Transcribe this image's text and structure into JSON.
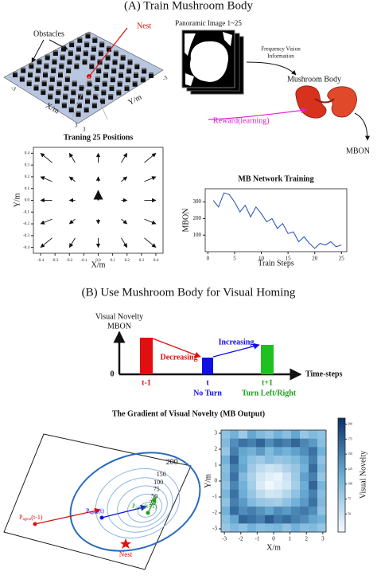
{
  "title_a": "(A) Train Mushroom Body",
  "arena": {
    "obstacles_label": "Obstacles",
    "nest_label": "Nest",
    "x_label": "X/m",
    "y_label": "Y/m",
    "x_ticks": [
      -3,
      3
    ],
    "y_ticks": [
      3,
      -3
    ]
  },
  "pipeline": {
    "panoramic_label": "Panoramic Image 1~25",
    "vision_label": [
      "Frequency Vision",
      "Information"
    ],
    "mb_label": "Mushroom Body",
    "reward_label": "Reward(learning)",
    "output_label": "MBON"
  },
  "chart_data": [
    {
      "type": "quiver",
      "title": "Traning 25 Positions",
      "x_label": "X/m",
      "y_label": "Y/m",
      "x": [
        -0.32,
        -0.16,
        0,
        0.16,
        0.32,
        -0.32,
        -0.16,
        0,
        0.16,
        0.32,
        -0.32,
        -0.16,
        0,
        0.16,
        0.32,
        -0.32,
        -0.16,
        0,
        0.16,
        0.32,
        -0.32,
        -0.16,
        0,
        0.16,
        0.32
      ],
      "y": [
        0.32,
        0.32,
        0.32,
        0.32,
        0.32,
        0.16,
        0.16,
        0.16,
        0.16,
        0.16,
        0,
        0,
        0,
        0,
        0,
        -0.16,
        -0.16,
        -0.16,
        -0.16,
        -0.16,
        -0.32,
        -0.32,
        -0.32,
        -0.32,
        -0.32
      ],
      "u": [
        -0.08,
        -0.04,
        0,
        0.04,
        0.08,
        -0.08,
        -0.04,
        0,
        0.04,
        0.08,
        -0.08,
        -0.04,
        0,
        0.04,
        0.08,
        -0.08,
        -0.04,
        0,
        0.04,
        0.08,
        -0.08,
        -0.04,
        0,
        0.04,
        0.08
      ],
      "v": [
        0.08,
        0.08,
        0.08,
        0.08,
        0.08,
        0.04,
        0.04,
        0.04,
        0.04,
        0.04,
        0,
        0,
        0.08,
        0,
        0,
        -0.04,
        -0.04,
        -0.04,
        -0.04,
        -0.04,
        -0.08,
        -0.08,
        -0.08,
        -0.08,
        -0.08
      ],
      "color": "#111111",
      "xlim": [
        -0.45,
        0.45
      ],
      "ylim": [
        -0.45,
        0.45
      ],
      "xticks": [
        -0.4,
        -0.3,
        -0.2,
        -0.1,
        {
          "value": 0,
          "label": "0.0"
        },
        0.1,
        0.2,
        0.3,
        0.4
      ],
      "yticks": [
        -0.4,
        -0.3,
        -0.2,
        -0.1,
        {
          "value": 0,
          "label": "0.0"
        },
        0.1,
        0.2,
        0.3,
        0.4
      ]
    },
    {
      "type": "line",
      "title": "MB Network Training",
      "x_label": "Train Steps",
      "y_label": "MBON",
      "x": [
        1,
        2,
        3,
        4,
        5,
        6,
        7,
        8,
        9,
        10,
        11,
        12,
        13,
        14,
        15,
        16,
        17,
        18,
        19,
        20,
        21,
        22,
        23,
        24,
        25
      ],
      "values": [
        310,
        270,
        355,
        345,
        300,
        240,
        280,
        210,
        270,
        230,
        180,
        200,
        140,
        170,
        110,
        120,
        60,
        90,
        50,
        20,
        50,
        40,
        60,
        30,
        40
      ],
      "color": "#1f4fb4",
      "xlim": [
        -0.5,
        26
      ],
      "ylim": [
        0,
        380
      ],
      "xticks": [
        0,
        5,
        10,
        15,
        20,
        25
      ],
      "yticks": [
        100,
        200,
        300
      ]
    },
    {
      "type": "heatmap",
      "x_label": "X/m",
      "y_label": "Y/m",
      "colorbar_label": "Visual Novelty",
      "xlim": [
        -3.2,
        3.2
      ],
      "ylim": [
        -3.2,
        3.2
      ],
      "xticks": [
        -3,
        -2,
        -1,
        0,
        1,
        2,
        3
      ],
      "yticks": [
        -3,
        -2,
        -1,
        0,
        1,
        2,
        3
      ],
      "clim": [
        20,
        210
      ],
      "cticks": [
        50,
        75,
        100,
        125,
        150,
        175,
        200
      ],
      "colors": [
        "#f7fbff",
        "#6baed6",
        "#08306b"
      ],
      "values": [
        [
          90,
          110,
          80,
          120,
          100,
          90,
          110,
          95,
          120,
          85,
          100,
          90
        ],
        [
          100,
          140,
          160,
          150,
          170,
          140,
          160,
          150,
          170,
          145,
          130,
          95
        ],
        [
          85,
          150,
          120,
          110,
          130,
          100,
          120,
          110,
          125,
          140,
          160,
          110
        ],
        [
          110,
          170,
          115,
          90,
          80,
          95,
          85,
          90,
          100,
          120,
          150,
          90
        ],
        [
          95,
          150,
          120,
          80,
          60,
          50,
          55,
          70,
          85,
          110,
          165,
          100
        ],
        [
          100,
          160,
          100,
          70,
          45,
          35,
          30,
          50,
          80,
          125,
          150,
          85
        ],
        [
          90,
          145,
          110,
          75,
          40,
          25,
          35,
          45,
          75,
          115,
          170,
          105
        ],
        [
          105,
          160,
          115,
          85,
          60,
          45,
          50,
          65,
          90,
          120,
          150,
          95
        ],
        [
          90,
          150,
          130,
          100,
          85,
          80,
          75,
          90,
          110,
          130,
          160,
          100
        ],
        [
          110,
          165,
          140,
          150,
          135,
          120,
          140,
          130,
          145,
          155,
          140,
          90
        ],
        [
          95,
          120,
          170,
          160,
          150,
          175,
          155,
          165,
          150,
          140,
          120,
          110
        ],
        [
          85,
          100,
          90,
          110,
          95,
          100,
          105,
          90,
          110,
          95,
          100,
          85
        ]
      ]
    }
  ],
  "title_b": "(B) Use Mushroom Body for Visual Homing",
  "timeline": {
    "y_label": [
      "Visual Novelty",
      "MBON"
    ],
    "origin": 0,
    "x_label": "Time-steps",
    "steps": [
      "t-1",
      "t",
      "t+1"
    ],
    "actions": [
      "No Turn",
      "Turn Left/Right"
    ],
    "trends": [
      "Decreasing",
      "Increasing"
    ]
  },
  "gradient_title": "The Gradient of Visual Novelty (MB Output)",
  "contour": {
    "levels": [
      200,
      150,
      100,
      75,
      50,
      20
    ],
    "nest_label": "Nest",
    "agents": [
      {
        "base": "P",
        "sub": "agent",
        "suffix": "(t-1)"
      },
      {
        "base": "P",
        "sub": "agent",
        "suffix": "(t)"
      },
      {
        "base": "P",
        "sub": "agent",
        "suffix": "(t+1)"
      }
    ]
  }
}
